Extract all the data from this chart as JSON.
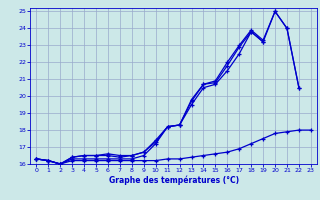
{
  "title": "Graphe des températures (°C)",
  "background_color": "#cce8e8",
  "grid_color": "#99aacc",
  "line_color": "#0000cc",
  "xlim": [
    -0.5,
    23.5
  ],
  "ylim": [
    16,
    25.2
  ],
  "xticks": [
    0,
    1,
    2,
    3,
    4,
    5,
    6,
    7,
    8,
    9,
    10,
    11,
    12,
    13,
    14,
    15,
    16,
    17,
    18,
    19,
    20,
    21,
    22,
    23
  ],
  "yticks": [
    16,
    17,
    18,
    19,
    20,
    21,
    22,
    23,
    24,
    25
  ],
  "series": [
    {
      "x": [
        0,
        1,
        2,
        3,
        4,
        5,
        6,
        7,
        8,
        9,
        10,
        11,
        12,
        13,
        14,
        15,
        16,
        17,
        18,
        19,
        20,
        21,
        22,
        23
      ],
      "y": [
        16.3,
        16.2,
        16.0,
        16.2,
        16.2,
        16.2,
        16.2,
        16.2,
        16.2,
        16.2,
        16.2,
        16.3,
        16.3,
        16.4,
        16.5,
        16.6,
        16.7,
        16.9,
        17.2,
        17.5,
        17.8,
        17.9,
        18.0,
        18.0
      ]
    },
    {
      "x": [
        0,
        1,
        2,
        3,
        4,
        5,
        6,
        7,
        8,
        9,
        10,
        11,
        12,
        13,
        14,
        15,
        16,
        17,
        18,
        19,
        20,
        21,
        22,
        23
      ],
      "y": [
        16.3,
        16.2,
        16.0,
        16.3,
        16.3,
        16.3,
        16.3,
        16.3,
        16.3,
        16.5,
        17.2,
        18.2,
        18.3,
        19.5,
        20.5,
        20.7,
        21.5,
        22.5,
        23.8,
        23.2,
        null,
        null,
        null,
        null
      ]
    },
    {
      "x": [
        0,
        1,
        2,
        3,
        4,
        5,
        6,
        7,
        8,
        9,
        10,
        11,
        12,
        13,
        14,
        15,
        16,
        17,
        18,
        19,
        20,
        21,
        22,
        23
      ],
      "y": [
        16.3,
        16.2,
        16.0,
        16.4,
        16.5,
        16.5,
        16.5,
        16.4,
        16.5,
        16.7,
        17.3,
        18.2,
        18.3,
        19.7,
        20.7,
        20.8,
        21.8,
        22.9,
        23.8,
        23.2,
        25.0,
        24.0,
        20.5,
        null
      ]
    },
    {
      "x": [
        0,
        1,
        2,
        3,
        4,
        5,
        6,
        7,
        8,
        9,
        10,
        11,
        12,
        13,
        14,
        15,
        16,
        17,
        18,
        19,
        20,
        21,
        22,
        23
      ],
      "y": [
        16.3,
        16.2,
        16.0,
        16.4,
        16.5,
        16.5,
        16.6,
        16.5,
        16.5,
        16.7,
        17.4,
        18.2,
        18.3,
        19.8,
        20.7,
        20.9,
        22.0,
        23.0,
        23.9,
        23.3,
        25.0,
        24.0,
        20.5,
        null
      ]
    }
  ]
}
